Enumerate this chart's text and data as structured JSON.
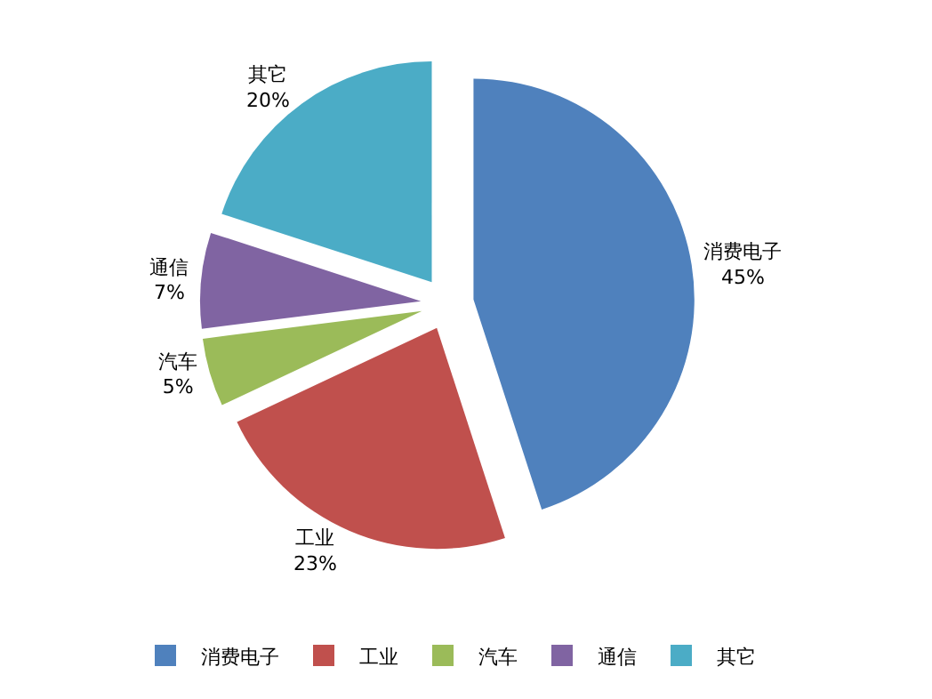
{
  "chart_data": {
    "type": "pie",
    "categories": [
      "消费电子",
      "工业",
      "汽车",
      "通信",
      "其它"
    ],
    "values": [
      45,
      23,
      5,
      7,
      20
    ],
    "value_labels": [
      "45%",
      "23%",
      "5%",
      "7%",
      "20%"
    ],
    "colors": [
      "#4f81bd",
      "#c0504d",
      "#9bbb59",
      "#8064a2",
      "#4bacc6"
    ],
    "legend": "bottom"
  }
}
